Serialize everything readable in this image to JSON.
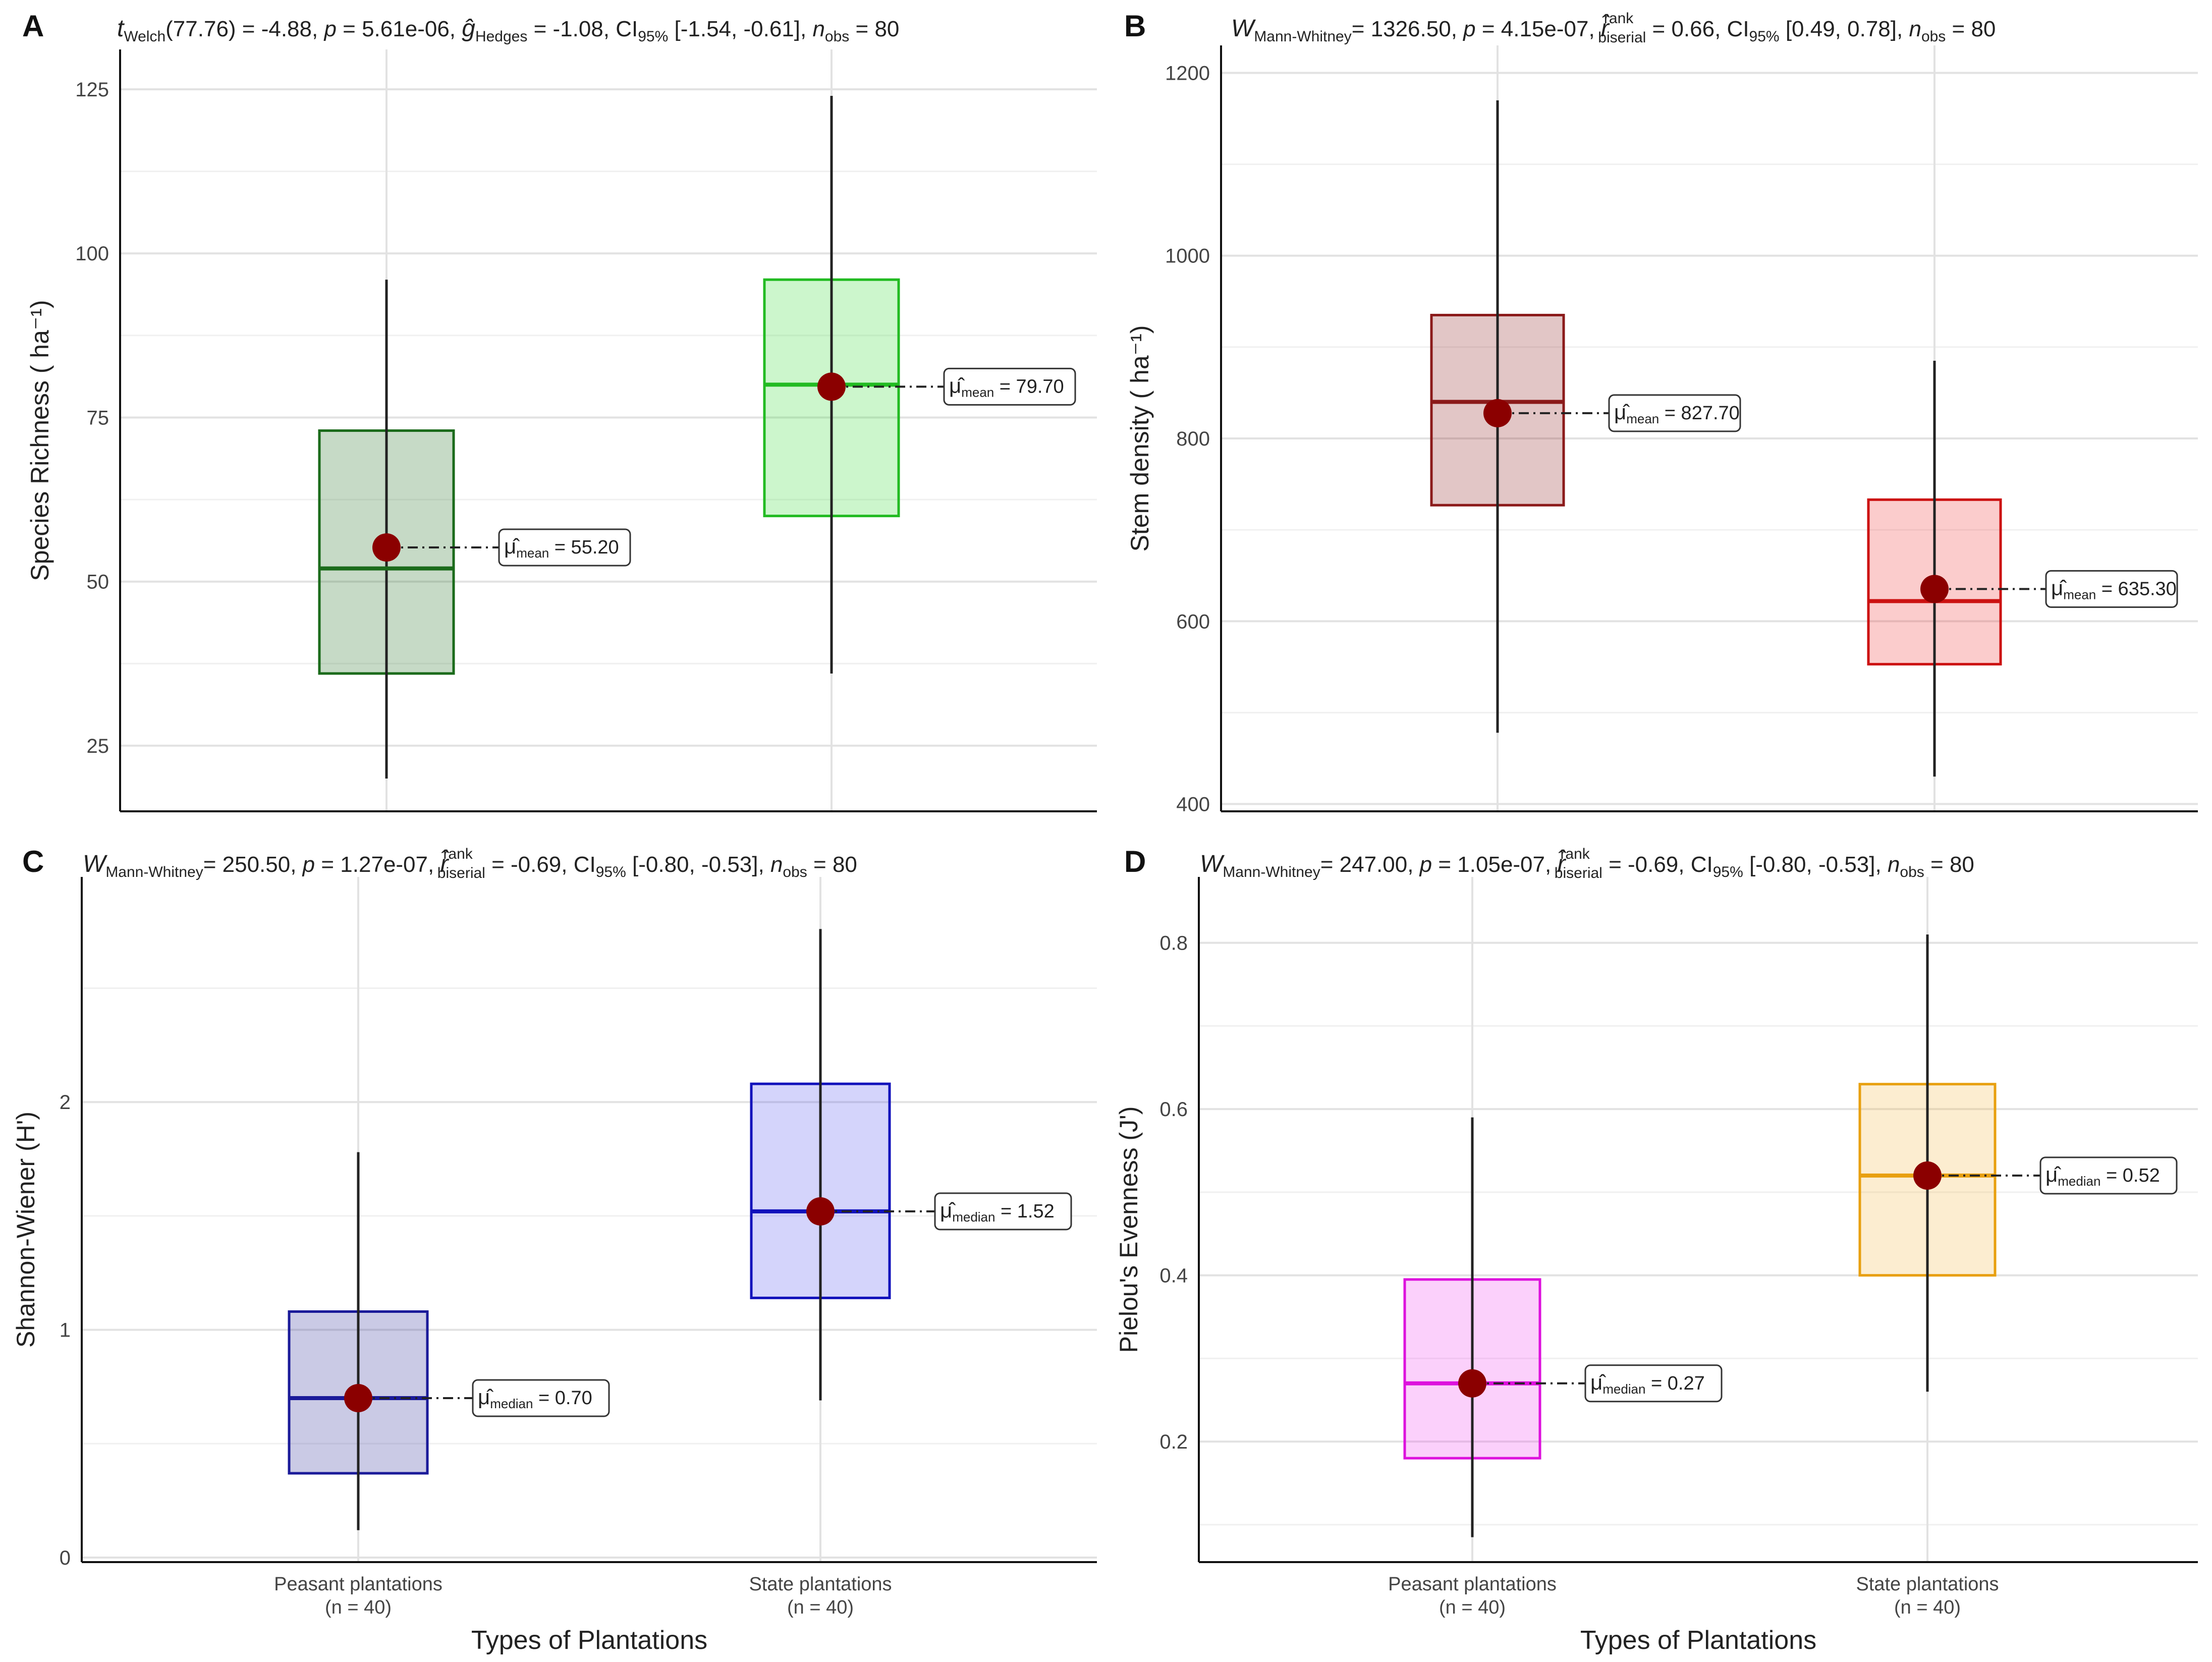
{
  "xaxis": {
    "title": "Types of Plantations",
    "groups": [
      {
        "name": "Peasant plantations",
        "n": "(n = 40)"
      },
      {
        "name": "State plantations",
        "n": "(n = 40)"
      }
    ]
  },
  "chart_data": [
    {
      "panel": "A",
      "type": "box",
      "test_stat": {
        "symbol": "t",
        "sub": "Welch",
        "value": "(77.76) = -4.88,"
      },
      "p_value": "5.61e-06,",
      "effect": {
        "symbol": "ĝ",
        "sub": "Hedges",
        "sup": "",
        "value": "= -1.08,"
      },
      "ci": {
        "sub": "95%",
        "value": "[-1.54, -0.61],"
      },
      "n_obs": "= 80",
      "ylabel": "Species Richness ( ha⁻¹)",
      "ylim": [
        15,
        128
      ],
      "yticks": [
        25,
        50,
        75,
        100,
        125
      ],
      "ytick_labels": [
        "25",
        "50",
        "75",
        "100",
        "125"
      ],
      "categories": [
        "Peasant plantations",
        "State plantations"
      ],
      "boxes": [
        {
          "q1": 36,
          "median": 52,
          "q3": 73,
          "whisker_low": 20,
          "whisker_high": 96,
          "center": 55.2,
          "fill": "#1B6B1B",
          "line": "#1B6B1B",
          "label_sub": "mean",
          "label_value": "55.20"
        },
        {
          "q1": 60,
          "median": 80,
          "q3": 96,
          "whisker_low": 36,
          "whisker_high": 124,
          "center": 79.7,
          "fill": "#33DD33",
          "line": "#22BB22",
          "label_sub": "mean",
          "label_value": "79.70"
        }
      ]
    },
    {
      "panel": "B",
      "type": "box",
      "test_stat": {
        "symbol": "W",
        "sub": "Mann-Whitney",
        "value": "= 1326.50,"
      },
      "p_value": "4.15e-07,",
      "effect": {
        "symbol": "r̂",
        "sub": "biserial",
        "sup": "rank",
        "value": "= 0.66,"
      },
      "ci": {
        "sub": "95%",
        "value": "[0.49, 0.78],"
      },
      "n_obs": "= 80",
      "ylabel": "Stem density ( ha⁻¹)",
      "ylim": [
        392,
        1208
      ],
      "yticks": [
        400,
        600,
        800,
        1000,
        1200
      ],
      "ytick_labels": [
        "400",
        "600",
        "800",
        "1000",
        "1200"
      ],
      "categories": [
        "Peasant plantations",
        "State plantations"
      ],
      "boxes": [
        {
          "q1": 727,
          "median": 840,
          "q3": 935,
          "whisker_low": 478,
          "whisker_high": 1170,
          "center": 827.7,
          "fill": "#8B1A1A",
          "line": "#8B1A1A",
          "label_sub": "mean",
          "label_value": "827.70"
        },
        {
          "q1": 553,
          "median": 622,
          "q3": 733,
          "whisker_low": 430,
          "whisker_high": 885,
          "center": 635.3,
          "fill": "#EE3333",
          "line": "#CC1111",
          "label_sub": "mean",
          "label_value": "635.30"
        }
      ]
    },
    {
      "panel": "C",
      "type": "box",
      "test_stat": {
        "symbol": "W",
        "sub": "Mann-Whitney",
        "value": "= 250.50,"
      },
      "p_value": "1.27e-07,",
      "effect": {
        "symbol": "r̂",
        "sub": "biserial",
        "sup": "rank",
        "value": "= -0.69,"
      },
      "ci": {
        "sub": "95%",
        "value": "[-0.80, -0.53],"
      },
      "n_obs": "= 80",
      "ylabel": "Shannon-Wiener (H')",
      "ylim": [
        -0.02,
        2.9
      ],
      "yticks": [
        0,
        1,
        2
      ],
      "ytick_labels": [
        "0",
        "1",
        "2"
      ],
      "categories": [
        "Peasant plantations",
        "State plantations"
      ],
      "boxes": [
        {
          "q1": 0.37,
          "median": 0.7,
          "q3": 1.08,
          "whisker_low": 0.12,
          "whisker_high": 1.78,
          "center": 0.7,
          "fill": "#2A2A99",
          "line": "#1A1A99",
          "label_sub": "median",
          "label_value": "0.70"
        },
        {
          "q1": 1.14,
          "median": 1.52,
          "q3": 2.08,
          "whisker_low": 0.69,
          "whisker_high": 2.76,
          "center": 1.52,
          "fill": "#5555EE",
          "line": "#1111BB",
          "label_sub": "median",
          "label_value": "1.52"
        }
      ]
    },
    {
      "panel": "D",
      "type": "box",
      "test_stat": {
        "symbol": "W",
        "sub": "Mann-Whitney",
        "value": "= 247.00,"
      },
      "p_value": "1.05e-07,",
      "effect": {
        "symbol": "r̂",
        "sub": "biserial",
        "sup": "rank",
        "value": "= -0.69,"
      },
      "ci": {
        "sub": "95%",
        "value": "[-0.80, -0.53],"
      },
      "n_obs": "= 80",
      "ylabel": "Pielou's Evenness (J')",
      "ylim": [
        0.055,
        0.855
      ],
      "yticks": [
        0.2,
        0.4,
        0.6,
        0.8
      ],
      "ytick_labels": [
        "0.2",
        "0.4",
        "0.6",
        "0.8"
      ],
      "categories": [
        "Peasant plantations",
        "State plantations"
      ],
      "boxes": [
        {
          "q1": 0.18,
          "median": 0.27,
          "q3": 0.395,
          "whisker_low": 0.085,
          "whisker_high": 0.59,
          "center": 0.27,
          "fill": "#EE44EE",
          "line": "#DD11DD",
          "label_sub": "median",
          "label_value": "0.27"
        },
        {
          "q1": 0.4,
          "median": 0.52,
          "q3": 0.63,
          "whisker_low": 0.26,
          "whisker_high": 0.81,
          "center": 0.52,
          "fill": "#F5B942",
          "line": "#E8A010",
          "label_sub": "median",
          "label_value": "0.52"
        }
      ]
    }
  ]
}
